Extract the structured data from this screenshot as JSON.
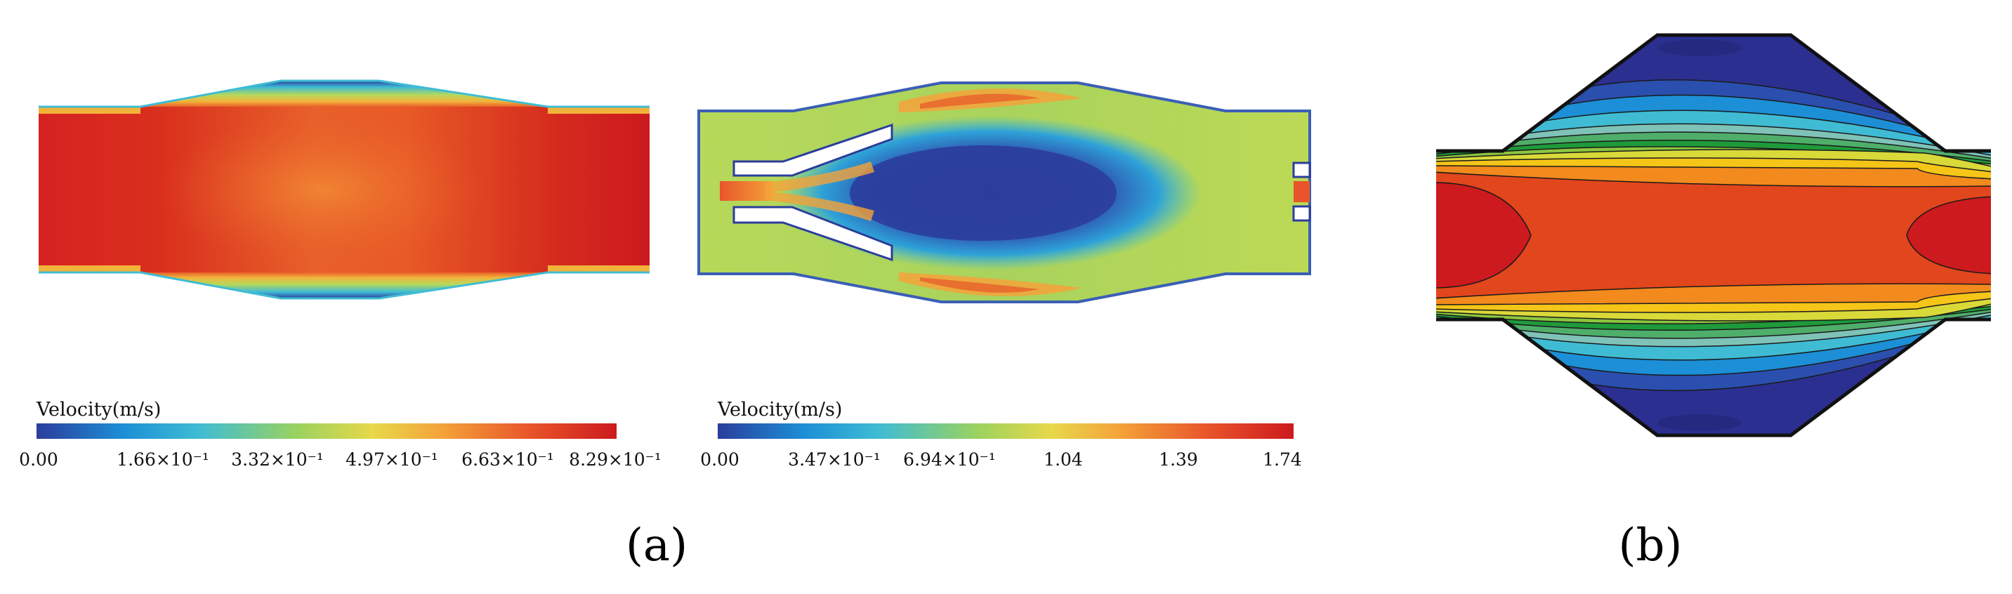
{
  "panels": [
    {
      "label": "(a)"
    },
    {
      "label": "(b)"
    }
  ],
  "colorbars": [
    {
      "title": "Velocity(m/s)",
      "ticks": [
        "0.00",
        "1.66×10⁻¹",
        "3.32×10⁻¹",
        "4.97×10⁻¹",
        "6.63×10⁻¹",
        "8.29×10⁻¹"
      ]
    },
    {
      "title": "Velocity(m/s)",
      "ticks": [
        "0.00",
        "3.47×10⁻¹",
        "6.94×10⁻¹",
        "1.04",
        "1.39",
        "1.74"
      ]
    }
  ],
  "colors": {
    "jet": [
      "#2b3d9c",
      "#1c8fd6",
      "#3fbcd4",
      "#9bd25f",
      "#e8d84a",
      "#f4a23a",
      "#e8552a",
      "#cc1a1e"
    ]
  }
}
